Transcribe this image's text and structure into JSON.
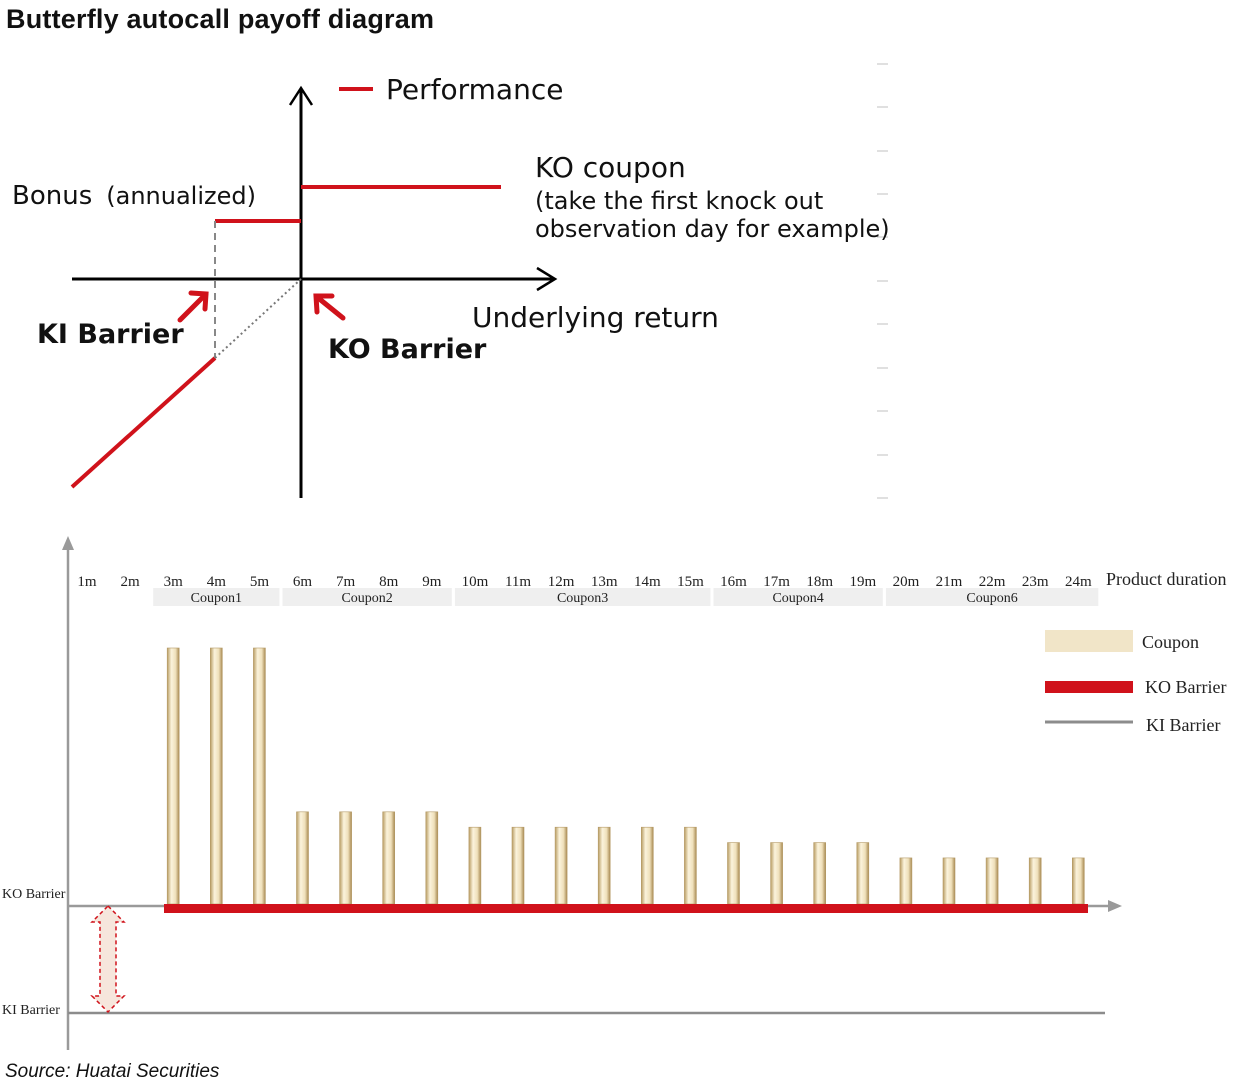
{
  "title": "Butterfly autocall payoff diagram",
  "source": "Source: Huatai Securities",
  "payoff": {
    "legend_label": "Performance",
    "y_label_main": "Bonus",
    "y_label_paren": "(annualized)",
    "ko_coupon_title": "KO coupon",
    "ko_coupon_note_1": "(take the first knock out",
    "ko_coupon_note_2": "observation day for example)",
    "x_axis_label": "Underlying return",
    "ki_barrier_label": "KI Barrier",
    "ko_barrier_label": "KO Barrier",
    "colors": {
      "performance": "#d0121b",
      "axis": "#000000"
    }
  },
  "timeline": {
    "duration_label": "Product duration",
    "months": [
      "1m",
      "2m",
      "3m",
      "4m",
      "5m",
      "6m",
      "7m",
      "8m",
      "9m",
      "10m",
      "11m",
      "12m",
      "13m",
      "14m",
      "15m",
      "16m",
      "17m",
      "18m",
      "19m",
      "20m",
      "21m",
      "22m",
      "23m",
      "24m"
    ],
    "coupon_groups": [
      {
        "label": "Coupon1",
        "from": 3,
        "to": 5
      },
      {
        "label": "Coupon2",
        "from": 6,
        "to": 9
      },
      {
        "label": "Coupon3",
        "from": 10,
        "to": 15
      },
      {
        "label": "Coupon4",
        "from": 16,
        "to": 19
      },
      {
        "label": "Coupon6",
        "from": 20,
        "to": 24
      }
    ],
    "coupon_levels": [
      0,
      0,
      1.0,
      1.0,
      1.0,
      0.36,
      0.36,
      0.36,
      0.36,
      0.3,
      0.3,
      0.3,
      0.3,
      0.3,
      0.3,
      0.24,
      0.24,
      0.24,
      0.24,
      0.18,
      0.18,
      0.18,
      0.18,
      0.18
    ],
    "ko_barrier_axis_label": "KO Barrier",
    "ki_barrier_axis_label": "KI Barrier",
    "legend": {
      "coupon": "Coupon",
      "ko_barrier": "KO Barrier",
      "ki_barrier": "KI Barrier"
    },
    "colors": {
      "coupon": "#f1e5c8",
      "coupon_edge": "#b49a66",
      "ko_barrier": "#d0121b",
      "ki_barrier": "#8c8c8c",
      "group_box": "#efefef"
    }
  }
}
